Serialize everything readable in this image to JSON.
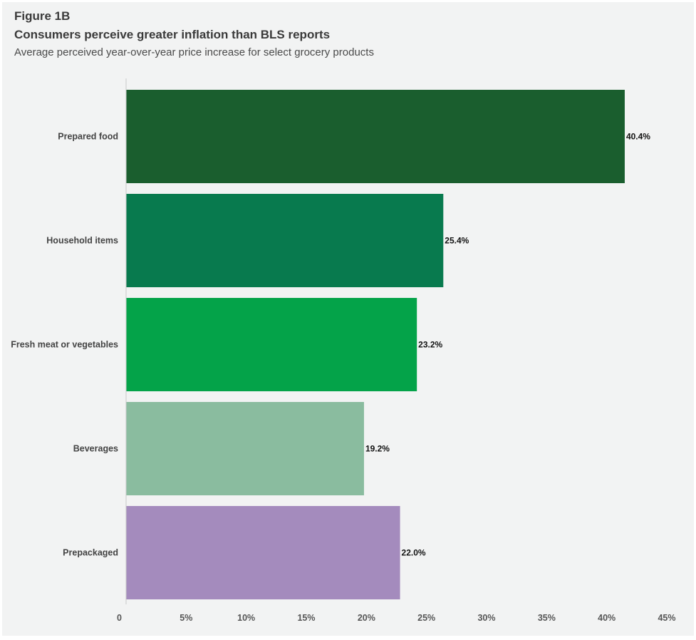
{
  "header": {
    "figure_label": "Figure 1B",
    "title": "Consumers perceive greater inflation than BLS reports",
    "subtitle": "Average perceived year-over-year price increase for select grocery products"
  },
  "chart_data": {
    "type": "bar",
    "orientation": "horizontal",
    "title": "Consumers perceive greater inflation than BLS reports",
    "subtitle": "Average perceived year-over-year price increase for select grocery products",
    "categories": [
      "Prepared food",
      "Household items",
      "Fresh meat or vegetables",
      "Beverages",
      "Prepackaged"
    ],
    "values": [
      40.4,
      25.4,
      23.2,
      19.2,
      22.0
    ],
    "value_labels": [
      "40.4%",
      "25.4%",
      "23.2%",
      "19.2%",
      "22.0%"
    ],
    "bar_lengths_in_axis_units": [
      41.5,
      26.4,
      24.2,
      19.8,
      22.8
    ],
    "colors": [
      "#1a5e2e",
      "#087a4e",
      "#04a349",
      "#8abc9f",
      "#a48bbd"
    ],
    "xlim": [
      0,
      45
    ],
    "x_ticks": [
      0,
      5,
      10,
      15,
      20,
      25,
      30,
      35,
      40,
      45
    ],
    "x_tick_labels": [
      "0",
      "5%",
      "10%",
      "15%",
      "20%",
      "25%",
      "30%",
      "35%",
      "40%",
      "45%"
    ],
    "xlabel": "",
    "ylabel": "",
    "grid": false,
    "legend": "none"
  }
}
